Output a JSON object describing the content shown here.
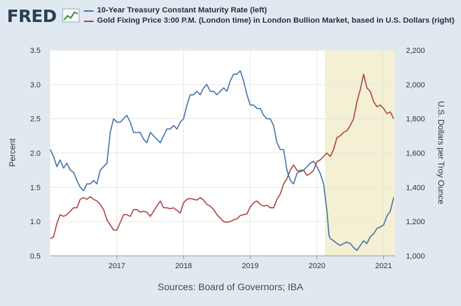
{
  "logo": {
    "text": "FRED"
  },
  "chart_data": {
    "type": "line",
    "series": [
      {
        "name": "10-Year Treasury Constant Maturity Rate (left)",
        "axis": "left",
        "color": "#4572a7",
        "x": [
          2016.0,
          2016.05,
          2016.1,
          2016.15,
          2016.2,
          2016.25,
          2016.3,
          2016.35,
          2016.4,
          2016.45,
          2016.5,
          2016.55,
          2016.6,
          2016.65,
          2016.7,
          2016.75,
          2016.8,
          2016.85,
          2016.9,
          2016.95,
          2017.0,
          2017.05,
          2017.1,
          2017.15,
          2017.2,
          2017.25,
          2017.3,
          2017.35,
          2017.4,
          2017.45,
          2017.5,
          2017.55,
          2017.6,
          2017.65,
          2017.7,
          2017.75,
          2017.8,
          2017.85,
          2017.9,
          2017.95,
          2018.0,
          2018.05,
          2018.1,
          2018.15,
          2018.2,
          2018.25,
          2018.3,
          2018.35,
          2018.4,
          2018.45,
          2018.5,
          2018.55,
          2018.6,
          2018.65,
          2018.7,
          2018.75,
          2018.8,
          2018.85,
          2018.9,
          2018.95,
          2019.0,
          2019.05,
          2019.1,
          2019.15,
          2019.2,
          2019.25,
          2019.3,
          2019.35,
          2019.4,
          2019.45,
          2019.5,
          2019.55,
          2019.6,
          2019.65,
          2019.7,
          2019.75,
          2019.8,
          2019.85,
          2019.9,
          2019.95,
          2020.0,
          2020.05,
          2020.1,
          2020.15,
          2020.18,
          2020.2,
          2020.25,
          2020.3,
          2020.35,
          2020.4,
          2020.45,
          2020.5,
          2020.55,
          2020.6,
          2020.65,
          2020.7,
          2020.75,
          2020.8,
          2020.85,
          2020.9,
          2020.95,
          2021.0,
          2021.05,
          2021.1,
          2021.15
        ],
        "y": [
          2.05,
          1.95,
          1.8,
          1.9,
          1.78,
          1.85,
          1.75,
          1.72,
          1.6,
          1.5,
          1.45,
          1.55,
          1.55,
          1.6,
          1.55,
          1.75,
          1.8,
          1.85,
          2.3,
          2.5,
          2.45,
          2.45,
          2.5,
          2.55,
          2.45,
          2.3,
          2.3,
          2.3,
          2.2,
          2.15,
          2.3,
          2.25,
          2.2,
          2.15,
          2.25,
          2.35,
          2.35,
          2.4,
          2.35,
          2.45,
          2.5,
          2.7,
          2.85,
          2.85,
          2.9,
          2.85,
          2.95,
          3.0,
          2.9,
          2.9,
          2.85,
          2.9,
          2.95,
          2.9,
          3.05,
          3.15,
          3.15,
          3.2,
          3.05,
          2.85,
          2.7,
          2.7,
          2.65,
          2.65,
          2.55,
          2.5,
          2.5,
          2.4,
          2.15,
          2.05,
          2.05,
          1.75,
          1.6,
          1.55,
          1.7,
          1.75,
          1.75,
          1.8,
          1.85,
          1.88,
          1.8,
          1.7,
          1.55,
          1.15,
          0.8,
          0.75,
          0.72,
          0.68,
          0.65,
          0.68,
          0.7,
          0.68,
          0.62,
          0.58,
          0.65,
          0.72,
          0.68,
          0.78,
          0.82,
          0.9,
          0.92,
          0.95,
          1.08,
          1.15,
          1.35
        ]
      },
      {
        "name": "Gold Fixing Price 3:00 P.M. (London time) in London Bullion Market, based in U.S. Dollars (right)",
        "axis": "right",
        "color": "#aa4643",
        "x": [
          2016.0,
          2016.05,
          2016.1,
          2016.15,
          2016.2,
          2016.25,
          2016.3,
          2016.35,
          2016.4,
          2016.45,
          2016.5,
          2016.55,
          2016.6,
          2016.65,
          2016.7,
          2016.75,
          2016.8,
          2016.85,
          2016.9,
          2016.95,
          2017.0,
          2017.05,
          2017.1,
          2017.15,
          2017.2,
          2017.25,
          2017.3,
          2017.35,
          2017.4,
          2017.45,
          2017.5,
          2017.55,
          2017.6,
          2017.65,
          2017.7,
          2017.75,
          2017.8,
          2017.85,
          2017.9,
          2017.95,
          2018.0,
          2018.05,
          2018.1,
          2018.15,
          2018.2,
          2018.25,
          2018.3,
          2018.35,
          2018.4,
          2018.45,
          2018.5,
          2018.55,
          2018.6,
          2018.65,
          2018.7,
          2018.75,
          2018.8,
          2018.85,
          2018.9,
          2018.95,
          2019.0,
          2019.05,
          2019.1,
          2019.15,
          2019.2,
          2019.25,
          2019.3,
          2019.35,
          2019.4,
          2019.45,
          2019.5,
          2019.55,
          2019.6,
          2019.65,
          2019.7,
          2019.75,
          2019.8,
          2019.85,
          2019.9,
          2019.95,
          2020.0,
          2020.05,
          2020.1,
          2020.15,
          2020.2,
          2020.25,
          2020.3,
          2020.35,
          2020.4,
          2020.45,
          2020.5,
          2020.55,
          2020.6,
          2020.65,
          2020.7,
          2020.75,
          2020.8,
          2020.85,
          2020.9,
          2020.95,
          2021.0,
          2021.05,
          2021.1,
          2021.15
        ],
        "y": [
          1100,
          1110,
          1190,
          1240,
          1230,
          1240,
          1260,
          1280,
          1280,
          1330,
          1340,
          1330,
          1345,
          1330,
          1320,
          1300,
          1270,
          1210,
          1180,
          1150,
          1150,
          1195,
          1240,
          1240,
          1230,
          1270,
          1270,
          1255,
          1260,
          1255,
          1230,
          1260,
          1290,
          1320,
          1280,
          1280,
          1275,
          1280,
          1265,
          1250,
          1310,
          1330,
          1335,
          1330,
          1325,
          1340,
          1325,
          1300,
          1290,
          1270,
          1240,
          1220,
          1200,
          1195,
          1200,
          1210,
          1215,
          1235,
          1240,
          1245,
          1285,
          1310,
          1320,
          1300,
          1290,
          1295,
          1280,
          1280,
          1330,
          1360,
          1420,
          1450,
          1500,
          1530,
          1500,
          1490,
          1500,
          1470,
          1480,
          1500,
          1550,
          1560,
          1580,
          1600,
          1580,
          1620,
          1690,
          1700,
          1720,
          1730,
          1760,
          1800,
          1900,
          1970,
          2060,
          1980,
          1960,
          1900,
          1870,
          1880,
          1860,
          1830,
          1840,
          1800
        ]
      }
    ],
    "left_axis": {
      "title": "Percent",
      "min": 0.5,
      "max": 3.5,
      "ticks": [
        "3.5",
        "3.0",
        "2.5",
        "2.0",
        "1.5",
        "1.0",
        "0.5"
      ]
    },
    "right_axis": {
      "title": "U.S. Dollars per Troy Ounce",
      "min": 1000,
      "max": 2200,
      "ticks": [
        "2,200",
        "2,000",
        "1,800",
        "1,600",
        "1,400",
        "1,200",
        "1,000"
      ]
    },
    "x_axis": {
      "min": 2016.0,
      "max": 2021.17,
      "tick_labels": [
        "2017",
        "2018",
        "2019",
        "2020",
        "2021"
      ],
      "tick_values": [
        2017,
        2018,
        2019,
        2020,
        2021
      ]
    },
    "recession_shading": {
      "start": 2020.12,
      "end": 2021.17,
      "color": "#f3f0d3"
    },
    "gridlines": true,
    "source": "Sources: Board of Governors; IBA"
  }
}
